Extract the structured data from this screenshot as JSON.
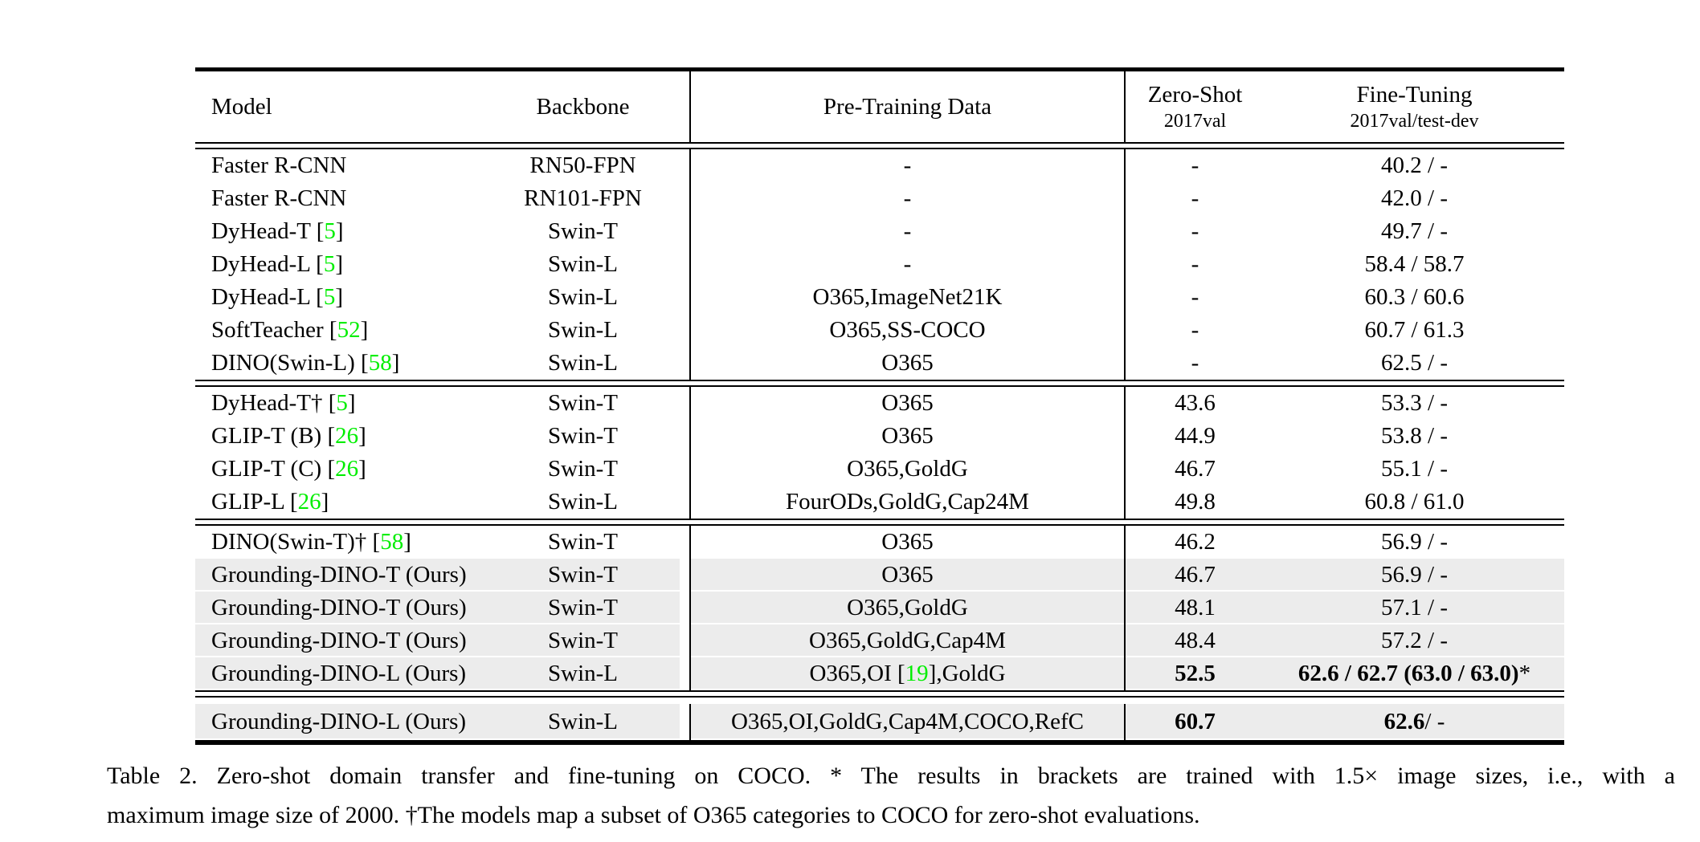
{
  "colors": {
    "citation_green": "#00ee00",
    "row_highlight": "#ececec",
    "rule_black": "#000000"
  },
  "table": {
    "headers": {
      "model": "Model",
      "backbone": "Backbone",
      "pretraining": "Pre-Training Data",
      "zeroshot": {
        "main": "Zero-Shot",
        "sub": "2017val"
      },
      "finetuning": {
        "main": "Fine-Tuning",
        "sub": "2017val/test-dev"
      }
    },
    "sections": [
      {
        "rows": [
          {
            "model": [
              [
                "Faster R-CNN",
                "plain"
              ]
            ],
            "backbone": "RN50-FPN",
            "pretrain": [
              [
                "-",
                "plain"
              ]
            ],
            "zs": [
              [
                "-",
                "plain"
              ]
            ],
            "ft": [
              [
                "40.2 / -",
                "plain"
              ]
            ],
            "hl": false
          },
          {
            "model": [
              [
                "Faster R-CNN",
                "plain"
              ]
            ],
            "backbone": "RN101-FPN",
            "pretrain": [
              [
                "-",
                "plain"
              ]
            ],
            "zs": [
              [
                "-",
                "plain"
              ]
            ],
            "ft": [
              [
                "42.0 / -",
                "plain"
              ]
            ],
            "hl": false
          },
          {
            "model": [
              [
                "DyHead-T [",
                "plain"
              ],
              [
                "5",
                "cite"
              ],
              [
                "]",
                "plain"
              ]
            ],
            "backbone": "Swin-T",
            "pretrain": [
              [
                "-",
                "plain"
              ]
            ],
            "zs": [
              [
                "-",
                "plain"
              ]
            ],
            "ft": [
              [
                "49.7 / -",
                "plain"
              ]
            ],
            "hl": false
          },
          {
            "model": [
              [
                "DyHead-L [",
                "plain"
              ],
              [
                "5",
                "cite"
              ],
              [
                "]",
                "plain"
              ]
            ],
            "backbone": "Swin-L",
            "pretrain": [
              [
                "-",
                "plain"
              ]
            ],
            "zs": [
              [
                "-",
                "plain"
              ]
            ],
            "ft": [
              [
                "58.4 / 58.7",
                "plain"
              ]
            ],
            "hl": false
          },
          {
            "model": [
              [
                "DyHead-L [",
                "plain"
              ],
              [
                "5",
                "cite"
              ],
              [
                "]",
                "plain"
              ]
            ],
            "backbone": "Swin-L",
            "pretrain": [
              [
                "O365,ImageNet21K",
                "plain"
              ]
            ],
            "zs": [
              [
                "-",
                "plain"
              ]
            ],
            "ft": [
              [
                "60.3 / 60.6",
                "plain"
              ]
            ],
            "hl": false
          },
          {
            "model": [
              [
                "SoftTeacher [",
                "plain"
              ],
              [
                "52",
                "cite"
              ],
              [
                "]",
                "plain"
              ]
            ],
            "backbone": "Swin-L",
            "pretrain": [
              [
                "O365,SS-COCO",
                "plain"
              ]
            ],
            "zs": [
              [
                "-",
                "plain"
              ]
            ],
            "ft": [
              [
                "60.7 / 61.3",
                "plain"
              ]
            ],
            "hl": false
          },
          {
            "model": [
              [
                "DINO(Swin-L) [",
                "plain"
              ],
              [
                "58",
                "cite"
              ],
              [
                "]",
                "plain"
              ]
            ],
            "backbone": "Swin-L",
            "pretrain": [
              [
                "O365",
                "plain"
              ]
            ],
            "zs": [
              [
                "-",
                "plain"
              ]
            ],
            "ft": [
              [
                "62.5 / -",
                "plain"
              ]
            ],
            "hl": false
          }
        ]
      },
      {
        "rows": [
          {
            "model": [
              [
                "DyHead-T† [",
                "plain"
              ],
              [
                "5",
                "cite"
              ],
              [
                "]",
                "plain"
              ]
            ],
            "backbone": "Swin-T",
            "pretrain": [
              [
                "O365",
                "plain"
              ]
            ],
            "zs": [
              [
                "43.6",
                "plain"
              ]
            ],
            "ft": [
              [
                "53.3 / -",
                "plain"
              ]
            ],
            "hl": false
          },
          {
            "model": [
              [
                "GLIP-T (B) [",
                "plain"
              ],
              [
                "26",
                "cite"
              ],
              [
                "]",
                "plain"
              ]
            ],
            "backbone": "Swin-T",
            "pretrain": [
              [
                "O365",
                "plain"
              ]
            ],
            "zs": [
              [
                "44.9",
                "plain"
              ]
            ],
            "ft": [
              [
                "53.8 / -",
                "plain"
              ]
            ],
            "hl": false
          },
          {
            "model": [
              [
                "GLIP-T (C) [",
                "plain"
              ],
              [
                "26",
                "cite"
              ],
              [
                "]",
                "plain"
              ]
            ],
            "backbone": "Swin-T",
            "pretrain": [
              [
                "O365,GoldG",
                "plain"
              ]
            ],
            "zs": [
              [
                "46.7",
                "plain"
              ]
            ],
            "ft": [
              [
                "55.1 / -",
                "plain"
              ]
            ],
            "hl": false
          },
          {
            "model": [
              [
                "GLIP-L [",
                "plain"
              ],
              [
                "26",
                "cite"
              ],
              [
                "]",
                "plain"
              ]
            ],
            "backbone": "Swin-L",
            "pretrain": [
              [
                "FourODs,GoldG,Cap24M",
                "plain"
              ]
            ],
            "zs": [
              [
                "49.8",
                "plain"
              ]
            ],
            "ft": [
              [
                "60.8 / 61.0",
                "plain"
              ]
            ],
            "hl": false
          }
        ]
      },
      {
        "rows": [
          {
            "model": [
              [
                "DINO(Swin-T)† [",
                "plain"
              ],
              [
                "58",
                "cite"
              ],
              [
                "]",
                "plain"
              ]
            ],
            "backbone": "Swin-T",
            "pretrain": [
              [
                "O365",
                "plain"
              ]
            ],
            "zs": [
              [
                "46.2",
                "plain"
              ]
            ],
            "ft": [
              [
                "56.9 / -",
                "plain"
              ]
            ],
            "hl": false
          },
          {
            "model": [
              [
                "Grounding-DINO-T (Ours)",
                "plain"
              ]
            ],
            "backbone": "Swin-T",
            "pretrain": [
              [
                "O365",
                "plain"
              ]
            ],
            "zs": [
              [
                "46.7",
                "plain"
              ]
            ],
            "ft": [
              [
                "56.9 / -",
                "plain"
              ]
            ],
            "hl": true
          },
          {
            "model": [
              [
                "Grounding-DINO-T (Ours)",
                "plain"
              ]
            ],
            "backbone": "Swin-T",
            "pretrain": [
              [
                "O365,GoldG",
                "plain"
              ]
            ],
            "zs": [
              [
                "48.1",
                "plain"
              ]
            ],
            "ft": [
              [
                "57.1 / -",
                "plain"
              ]
            ],
            "hl": true
          },
          {
            "model": [
              [
                "Grounding-DINO-T (Ours)",
                "plain"
              ]
            ],
            "backbone": "Swin-T",
            "pretrain": [
              [
                "O365,GoldG,Cap4M",
                "plain"
              ]
            ],
            "zs": [
              [
                "48.4",
                "plain"
              ]
            ],
            "ft": [
              [
                "57.2 / -",
                "plain"
              ]
            ],
            "hl": true
          },
          {
            "model": [
              [
                "Grounding-DINO-L (Ours)",
                "plain"
              ]
            ],
            "backbone": "Swin-L",
            "pretrain": [
              [
                "O365,OI [",
                "plain"
              ],
              [
                "19",
                "cite"
              ],
              [
                "],GoldG",
                "plain"
              ]
            ],
            "zs": [
              [
                "52.5",
                "bold"
              ]
            ],
            "ft": [
              [
                "62.6 / 62.7 (63.0 / 63.0)",
                "bold"
              ],
              [
                "*",
                "plain"
              ]
            ],
            "hl": true
          }
        ]
      },
      {
        "rows": [
          {
            "model": [
              [
                "Grounding-DINO-L (Ours)",
                "plain"
              ]
            ],
            "backbone": "Swin-L",
            "pretrain": [
              [
                "O365,OI,GoldG,Cap4M,COCO,RefC",
                "plain"
              ]
            ],
            "zs": [
              [
                "60.7",
                "bold"
              ]
            ],
            "ft": [
              [
                "62.6",
                "bold"
              ],
              [
                " / -",
                "plain"
              ]
            ],
            "hl": true
          }
        ]
      }
    ]
  },
  "caption": {
    "line1": "Table 2.  Zero-shot domain transfer and fine-tuning on COCO. * The results in brackets are trained with 1.5× image sizes, i.e., with a",
    "line2": "maximum image size of 2000. †The models map a subset of O365 categories to COCO for zero-shot evaluations."
  }
}
